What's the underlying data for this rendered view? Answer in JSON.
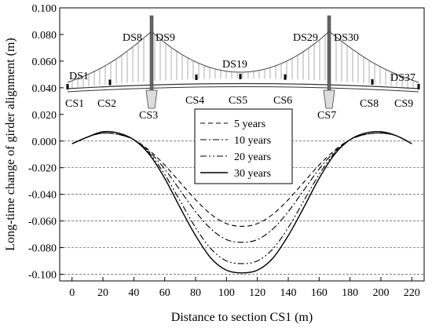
{
  "chart_data": {
    "type": "line",
    "xlabel": "Distance to section CS1 (m)",
    "ylabel": "Long-time change of girder alignment (m)",
    "xlim": [
      -8,
      228
    ],
    "ylim": [
      -0.105,
      0.1
    ],
    "x_ticks": [
      0,
      20,
      40,
      60,
      80,
      100,
      120,
      140,
      160,
      180,
      200,
      220
    ],
    "x_tick_labels": [
      "0",
      "20",
      "40",
      "60",
      "80",
      "100",
      "120",
      "140",
      "160",
      "180",
      "200",
      "220"
    ],
    "y_ticks": [
      0.1,
      0.08,
      0.06,
      0.04,
      0.02,
      0.0,
      -0.02,
      -0.04,
      -0.06,
      -0.08,
      -0.1
    ],
    "y_tick_labels": [
      "0.100",
      "0.080",
      "0.060",
      "0.040",
      "0.020",
      "0.000",
      "-0.020",
      "-0.040",
      "-0.060",
      "-0.080",
      "-0.100"
    ],
    "grid": "dashed horizontal lines at negative y ticks",
    "legend_placement": "center",
    "x": [
      0,
      10,
      20,
      30,
      40,
      50,
      60,
      70,
      80,
      90,
      100,
      110,
      120,
      130,
      140,
      150,
      160,
      170,
      180,
      190,
      200,
      210,
      220
    ],
    "series": [
      {
        "name": "5 years",
        "style": "dashed",
        "values": [
          -0.002,
          0.003,
          0.006,
          0.005,
          0.001,
          -0.007,
          -0.018,
          -0.031,
          -0.044,
          -0.055,
          -0.062,
          -0.064,
          -0.062,
          -0.055,
          -0.044,
          -0.031,
          -0.018,
          -0.007,
          0.001,
          0.005,
          0.006,
          0.004,
          -0.002
        ]
      },
      {
        "name": "10 years",
        "style": "dashdot",
        "values": [
          -0.002,
          0.003,
          0.006,
          0.005,
          0.001,
          -0.008,
          -0.021,
          -0.037,
          -0.053,
          -0.066,
          -0.074,
          -0.076,
          -0.074,
          -0.066,
          -0.053,
          -0.037,
          -0.021,
          -0.008,
          0.001,
          0.005,
          0.006,
          0.004,
          -0.002
        ]
      },
      {
        "name": "20 years",
        "style": "dashdotdot",
        "values": [
          -0.002,
          0.003,
          0.006,
          0.005,
          0.001,
          -0.009,
          -0.025,
          -0.045,
          -0.065,
          -0.081,
          -0.09,
          -0.092,
          -0.09,
          -0.081,
          -0.065,
          -0.045,
          -0.025,
          -0.009,
          0.001,
          0.005,
          0.006,
          0.004,
          -0.002
        ]
      },
      {
        "name": "30 years",
        "style": "solid",
        "values": [
          -0.002,
          0.003,
          0.007,
          0.006,
          0.001,
          -0.01,
          -0.028,
          -0.05,
          -0.071,
          -0.088,
          -0.097,
          -0.099,
          -0.097,
          -0.088,
          -0.071,
          -0.05,
          -0.028,
          -0.01,
          0.001,
          0.006,
          0.007,
          0.004,
          -0.002
        ]
      }
    ]
  },
  "bridge": {
    "labels_top": [
      "DS1",
      "DS8",
      "DS9",
      "DS19",
      "DS29",
      "DS30",
      "DS37"
    ],
    "labels_bottom": [
      "CS1",
      "CS2",
      "CS3",
      "CS4",
      "CS5",
      "CS6",
      "CS7",
      "CS8",
      "CS9"
    ]
  }
}
